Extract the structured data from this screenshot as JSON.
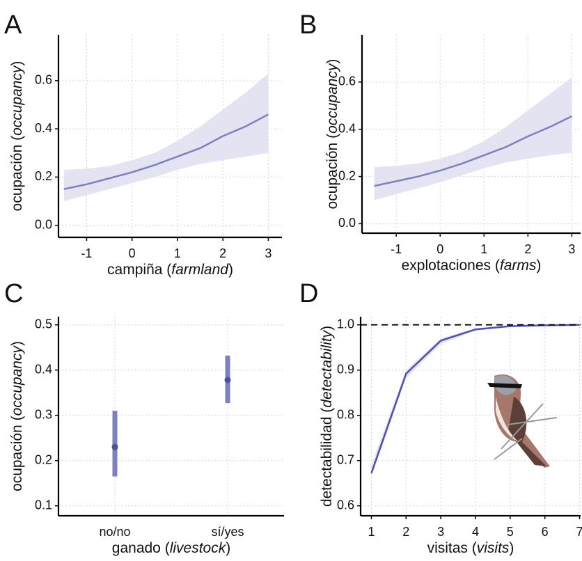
{
  "chart_data": [
    {
      "panel": "A",
      "type": "line",
      "xlabel": [
        "campiña (",
        "farmland",
        ")"
      ],
      "ylabel": [
        "ocupación (",
        "occupancy",
        ")"
      ],
      "x": [
        -1.5,
        -1,
        -0.5,
        0,
        0.5,
        1,
        1.5,
        2,
        2.5,
        3
      ],
      "series": [
        {
          "color": "#7b7fc4",
          "band_color": "#e3e3f2",
          "values": [
            0.15,
            0.17,
            0.195,
            0.22,
            0.25,
            0.285,
            0.32,
            0.37,
            0.41,
            0.46
          ],
          "lower": [
            0.1,
            0.125,
            0.15,
            0.175,
            0.2,
            0.23,
            0.255,
            0.27,
            0.285,
            0.3
          ],
          "upper": [
            0.23,
            0.235,
            0.245,
            0.27,
            0.3,
            0.35,
            0.41,
            0.48,
            0.55,
            0.63
          ]
        }
      ],
      "xlim": [
        -1.62,
        3.3
      ],
      "ylim": [
        -0.05,
        0.79
      ],
      "xticks": [
        -1,
        0,
        1,
        2,
        3
      ],
      "yticks": [
        {
          "value": 0,
          "label": "0.0"
        },
        0.2,
        0.4,
        0.6
      ],
      "grid": true
    },
    {
      "panel": "B",
      "type": "line",
      "xlabel": [
        "explotaciones (",
        "farms",
        ")"
      ],
      "ylabel": [
        "ocupación (",
        "occupancy",
        ")"
      ],
      "x": [
        -1.5,
        -1,
        -0.5,
        0,
        0.5,
        1,
        1.5,
        2,
        2.5,
        3
      ],
      "series": [
        {
          "color": "#7b7fc4",
          "band_color": "#e3e3f2",
          "values": [
            0.16,
            0.18,
            0.2,
            0.225,
            0.255,
            0.29,
            0.325,
            0.37,
            0.41,
            0.455
          ],
          "lower": [
            0.1,
            0.125,
            0.15,
            0.175,
            0.205,
            0.235,
            0.26,
            0.275,
            0.29,
            0.3
          ],
          "upper": [
            0.24,
            0.245,
            0.255,
            0.275,
            0.305,
            0.35,
            0.41,
            0.48,
            0.55,
            0.62
          ]
        }
      ],
      "xlim": [
        -1.78,
        3.2
      ],
      "ylim": [
        -0.04,
        0.8
      ],
      "xticks": [
        -1,
        0,
        1,
        2,
        3
      ],
      "yticks": [
        {
          "value": 0,
          "label": "0.0"
        },
        0.2,
        0.4,
        0.6
      ],
      "grid": true
    },
    {
      "panel": "C",
      "type": "errorbar",
      "xlabel": [
        "ganado (",
        "livestock",
        ")"
      ],
      "ylabel": [
        "ocupación (",
        "occupancy",
        ")"
      ],
      "categories": [
        "no/no",
        "sí/yes"
      ],
      "series": [
        {
          "color": "#4b4fa6",
          "bar_color": "#7b7fc4",
          "values": [
            0.23,
            0.378
          ],
          "lower": [
            0.165,
            0.327
          ],
          "upper": [
            0.31,
            0.432
          ]
        }
      ],
      "ylim": [
        0.078,
        0.518
      ],
      "yticks": [
        0.1,
        0.2,
        0.3,
        0.4,
        0.5
      ],
      "grid": true
    },
    {
      "panel": "D",
      "type": "line",
      "xlabel": [
        "visitas (",
        "visits",
        ")"
      ],
      "ylabel": [
        "detectabilidad (",
        "detectability",
        ")"
      ],
      "x": [
        1,
        2,
        3,
        4,
        5,
        6,
        7
      ],
      "series": [
        {
          "color": "#4b4fb8",
          "band_color": "#e3e3ee",
          "values": [
            0.672,
            0.892,
            0.965,
            0.99,
            0.997,
            0.999,
            1.0
          ],
          "lower": [
            0.665,
            0.882,
            0.958,
            0.987,
            0.996,
            0.999,
            1.0
          ],
          "upper": [
            0.69,
            0.9,
            0.97,
            0.992,
            0.998,
            1.0,
            1.0
          ]
        }
      ],
      "xlim": [
        0.69,
        7.03
      ],
      "ylim": [
        0.578,
        1.018
      ],
      "xticks": [
        1,
        2,
        3,
        4,
        5,
        6,
        7
      ],
      "yticks": [
        0.6,
        0.7,
        0.8,
        0.9,
        {
          "value": 1,
          "label": "1.0"
        }
      ],
      "hline": 1,
      "grid": true
    }
  ]
}
